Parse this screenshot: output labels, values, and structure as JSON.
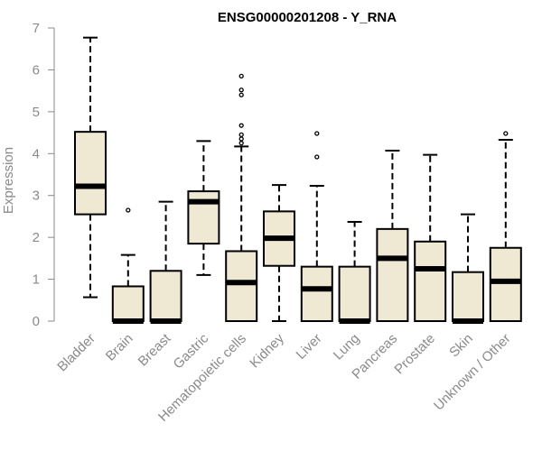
{
  "chart_data": {
    "type": "boxplot",
    "title": "ENSG00000201208 - Y_RNA",
    "xlabel": "",
    "ylabel": "Expression",
    "ylim": [
      0,
      7
    ],
    "yticks": [
      0,
      1,
      2,
      3,
      4,
      5,
      6,
      7
    ],
    "grid": false,
    "legend": "none",
    "colors": {
      "box_fill": "#efe8d2",
      "box_stroke": "#000000",
      "axis": "#8a8a8a"
    },
    "categories": [
      "Bladder",
      "Brain",
      "Breast",
      "Gastric",
      "Hematopoietic cells",
      "Kidney",
      "Liver",
      "Lung",
      "Pancreas",
      "Prostate",
      "Skin",
      "Unknown / Other"
    ],
    "boxes": [
      {
        "name": "Bladder",
        "whisker_low": 0.57,
        "q1": 2.55,
        "median": 3.22,
        "q3": 4.52,
        "whisker_high": 6.77,
        "outliers": []
      },
      {
        "name": "Brain",
        "whisker_low": 0.0,
        "q1": 0.0,
        "median": 0.0,
        "q3": 0.83,
        "whisker_high": 1.58,
        "outliers": [
          2.65
        ]
      },
      {
        "name": "Breast",
        "whisker_low": 0.0,
        "q1": 0.0,
        "median": 0.0,
        "q3": 1.2,
        "whisker_high": 2.85,
        "outliers": []
      },
      {
        "name": "Gastric",
        "whisker_low": 1.1,
        "q1": 1.85,
        "median": 2.85,
        "q3": 3.1,
        "whisker_high": 4.3,
        "outliers": []
      },
      {
        "name": "Hematopoietic cells",
        "whisker_low": 0.0,
        "q1": 0.0,
        "median": 0.92,
        "q3": 1.67,
        "whisker_high": 4.17,
        "outliers": [
          4.25,
          4.35,
          4.45,
          4.67,
          5.4,
          5.52,
          5.85
        ]
      },
      {
        "name": "Kidney",
        "whisker_low": 0.0,
        "q1": 1.32,
        "median": 1.98,
        "q3": 2.62,
        "whisker_high": 3.25,
        "outliers": []
      },
      {
        "name": "Liver",
        "whisker_low": 0.0,
        "q1": 0.0,
        "median": 0.77,
        "q3": 1.3,
        "whisker_high": 3.23,
        "outliers": [
          3.92,
          4.48
        ]
      },
      {
        "name": "Lung",
        "whisker_low": 0.0,
        "q1": 0.0,
        "median": 0.0,
        "q3": 1.3,
        "whisker_high": 2.37,
        "outliers": []
      },
      {
        "name": "Pancreas",
        "whisker_low": 0.0,
        "q1": 0.0,
        "median": 1.5,
        "q3": 2.2,
        "whisker_high": 4.07,
        "outliers": []
      },
      {
        "name": "Prostate",
        "whisker_low": 0.0,
        "q1": 0.0,
        "median": 1.25,
        "q3": 1.9,
        "whisker_high": 3.97,
        "outliers": []
      },
      {
        "name": "Skin",
        "whisker_low": 0.0,
        "q1": 0.0,
        "median": 0.0,
        "q3": 1.17,
        "whisker_high": 2.55,
        "outliers": []
      },
      {
        "name": "Unknown / Other",
        "whisker_low": 0.0,
        "q1": 0.0,
        "median": 0.95,
        "q3": 1.75,
        "whisker_high": 4.33,
        "outliers": [
          4.48
        ]
      }
    ]
  }
}
